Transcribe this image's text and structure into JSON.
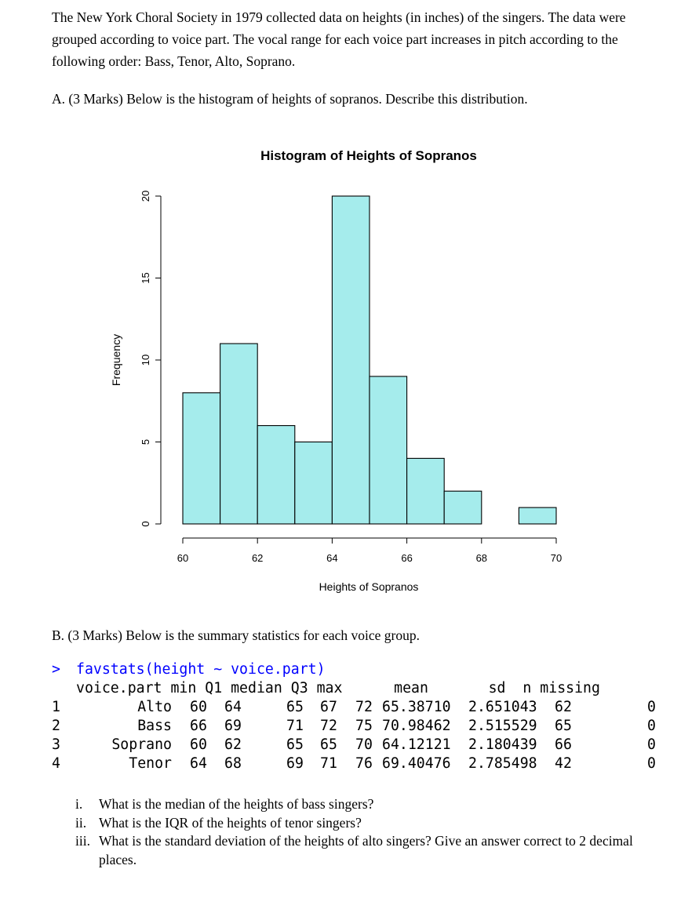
{
  "intro_text": "The New York Choral Society in 1979 collected data on heights (in inches) of the singers. The data were grouped according to voice part. The vocal range for each voice part increases in pitch according to the following order: Bass, Tenor, Alto, Soprano.",
  "part_a": "A.  (3 Marks) Below is the histogram of heights of sopranos. Describe this distribution.",
  "chart_data": {
    "type": "bar",
    "title": "Histogram of Heights of Sopranos",
    "xlabel": "Heights of Sopranos",
    "ylabel": "Frequency",
    "bins": [
      [
        60,
        61
      ],
      [
        61,
        62
      ],
      [
        62,
        63
      ],
      [
        63,
        64
      ],
      [
        64,
        65
      ],
      [
        65,
        66
      ],
      [
        66,
        67
      ],
      [
        67,
        68
      ],
      [
        68,
        69
      ],
      [
        69,
        70
      ]
    ],
    "values": [
      8,
      11,
      6,
      5,
      20,
      9,
      4,
      2,
      0,
      1
    ],
    "xticks": [
      60,
      62,
      64,
      66,
      68,
      70
    ],
    "yticks": [
      0,
      5,
      10,
      15,
      20
    ],
    "xlim": [
      60,
      70
    ],
    "ylim": [
      0,
      20
    ],
    "bar_color": "#a5ecec"
  },
  "part_b": "B.  (3 Marks) Below is the summary statistics for each voice group.",
  "console": {
    "prompt": ">",
    "command": "favstats(height ~ voice.part)",
    "header": "voice.part min Q1 median Q3 max      mean       sd  n missing",
    "rows": [
      {
        "idx": "1",
        "part": "Alto",
        "min": "60",
        "q1": "64",
        "median": "65",
        "q3": "67",
        "max": "72",
        "mean": "65.38710",
        "sd": "2.651043",
        "n": "62",
        "missing": "0"
      },
      {
        "idx": "2",
        "part": "Bass",
        "min": "66",
        "q1": "69",
        "median": "71",
        "q3": "72",
        "max": "75",
        "mean": "70.98462",
        "sd": "2.515529",
        "n": "65",
        "missing": "0"
      },
      {
        "idx": "3",
        "part": "Soprano",
        "min": "60",
        "q1": "62",
        "median": "65",
        "q3": "65",
        "max": "70",
        "mean": "64.12121",
        "sd": "2.180439",
        "n": "66",
        "missing": "0"
      },
      {
        "idx": "4",
        "part": "Tenor",
        "min": "64",
        "q1": "68",
        "median": "69",
        "q3": "71",
        "max": "76",
        "mean": "69.40476",
        "sd": "2.785498",
        "n": "42",
        "missing": "0"
      }
    ],
    "prompt_color": "#0000ff"
  },
  "questions": [
    {
      "num": "i.",
      "text": "What is the median of the heights of bass singers?"
    },
    {
      "num": "ii.",
      "text": "What is the IQR of the heights of tenor singers?"
    },
    {
      "num": "iii.",
      "text": "What is the standard deviation of the heights of alto singers? Give an answer correct to 2 decimal places."
    }
  ]
}
